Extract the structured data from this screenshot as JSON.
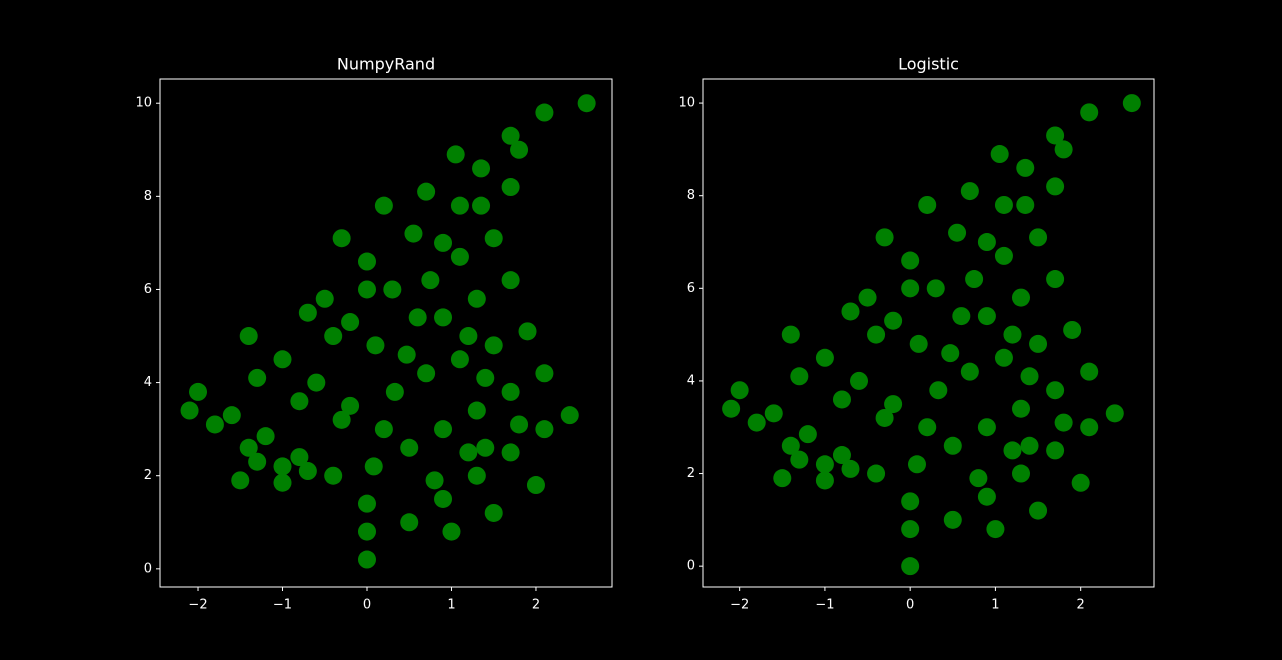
{
  "chart_data": [
    {
      "type": "scatter",
      "title": "NumpyRand",
      "color": "#008000",
      "xlim": [
        -2.45,
        2.9
      ],
      "ylim": [
        -0.39,
        10.52
      ],
      "xticks": [
        {
          "value": -2,
          "label": "−2"
        },
        {
          "value": -1,
          "label": "−1"
        },
        0,
        1,
        2
      ],
      "yticks": [
        0,
        2,
        4,
        6,
        8,
        10
      ],
      "series": [
        {
          "color": "#008000",
          "x": [
            0,
            0,
            0,
            0.08,
            0.2,
            0.33,
            0.47,
            0.6,
            0.75,
            0.9,
            1.1,
            1.35,
            1.7,
            2.1,
            2.6,
            -0.4,
            -0.8,
            -1.2,
            -1.6,
            -2.0,
            -1.4,
            -1.0,
            -1.8,
            -1.3,
            -0.7,
            -1.5,
            -1.0,
            -2.1,
            -0.2,
            -0.6,
            -1.0,
            -1.4,
            -0.8,
            -1.3,
            -0.3,
            0.1,
            -0.2,
            -0.5,
            -0.4,
            -0.7,
            0.3,
            0.0,
            -0.3,
            0.0,
            0.55,
            0.2,
            0.7,
            1.05,
            0.5,
            0.9,
            1.3,
            1.7,
            2.1,
            2.4,
            1.0,
            1.5,
            2.0,
            0.8,
            1.4,
            0.5,
            0.9,
            1.3,
            1.7,
            2.1,
            1.2,
            1.8,
            0.7,
            1.1,
            1.5,
            1.9,
            1.4,
            0.9,
            1.3,
            1.7,
            1.2,
            1.1,
            1.5,
            1.35,
            1.7,
            1.8
          ],
          "values": [
            0.2,
            0.8,
            1.4,
            2.2,
            3,
            3.8,
            4.6,
            5.4,
            6.2,
            7,
            7.8,
            8.6,
            9.3,
            9.8,
            10,
            2.0,
            2.4,
            2.85,
            3.3,
            3.8,
            2.6,
            2.2,
            3.1,
            2.3,
            2.1,
            1.9,
            1.85,
            3.4,
            3.5,
            4.0,
            4.5,
            5.0,
            3.6,
            4.1,
            3.2,
            4.8,
            5.3,
            5.8,
            5.0,
            5.5,
            6.0,
            6.6,
            7.1,
            6.0,
            7.2,
            7.8,
            8.1,
            8.9,
            1.0,
            1.5,
            2.0,
            2.5,
            3.0,
            3.3,
            0.8,
            1.2,
            1.8,
            1.9,
            2.6,
            2.6,
            3.0,
            3.4,
            3.8,
            4.2,
            2.5,
            3.1,
            4.2,
            4.5,
            4.8,
            5.1,
            4.1,
            5.4,
            5.8,
            6.2,
            5.0,
            6.7,
            7.1,
            7.8,
            8.2,
            9.0
          ]
        }
      ]
    },
    {
      "type": "scatter",
      "title": "Logistic",
      "color": "#008000",
      "xlim": [
        -2.43,
        2.86
      ],
      "ylim": [
        -0.45,
        10.52
      ],
      "xticks": [
        {
          "value": -2,
          "label": "−2"
        },
        {
          "value": -1,
          "label": "−1"
        },
        0,
        1,
        2
      ],
      "yticks": [
        0,
        2,
        4,
        6,
        8,
        10
      ],
      "series": [
        {
          "color": "#008000",
          "x": [
            0,
            0,
            0,
            0.08,
            0.2,
            0.33,
            0.47,
            0.6,
            0.75,
            0.9,
            1.1,
            1.35,
            1.7,
            2.1,
            2.6,
            -0.4,
            -0.8,
            -1.2,
            -1.6,
            -2.0,
            -1.4,
            -1.0,
            -1.8,
            -1.3,
            -0.7,
            -1.5,
            -1.0,
            -2.1,
            -0.2,
            -0.6,
            -1.0,
            -1.4,
            -0.8,
            -1.3,
            -0.3,
            0.1,
            -0.2,
            -0.5,
            -0.4,
            -0.7,
            0.3,
            0.0,
            -0.3,
            0.0,
            0.55,
            0.2,
            0.7,
            1.05,
            0.5,
            0.9,
            1.3,
            1.7,
            2.1,
            2.4,
            1.0,
            1.5,
            2.0,
            0.8,
            1.4,
            0.5,
            0.9,
            1.3,
            1.7,
            2.1,
            1.2,
            1.8,
            0.7,
            1.1,
            1.5,
            1.9,
            1.4,
            0.9,
            1.3,
            1.7,
            1.2,
            1.1,
            1.5,
            1.35,
            1.7,
            1.8
          ],
          "values": [
            0.0,
            0.8,
            1.4,
            2.2,
            3,
            3.8,
            4.6,
            5.4,
            6.2,
            7,
            7.8,
            8.6,
            9.3,
            9.8,
            10,
            2.0,
            2.4,
            2.85,
            3.3,
            3.8,
            2.6,
            2.2,
            3.1,
            2.3,
            2.1,
            1.9,
            1.85,
            3.4,
            3.5,
            4.0,
            4.5,
            5.0,
            3.6,
            4.1,
            3.2,
            4.8,
            5.3,
            5.8,
            5.0,
            5.5,
            6.0,
            6.6,
            7.1,
            6.0,
            7.2,
            7.8,
            8.1,
            8.9,
            1.0,
            1.5,
            2.0,
            2.5,
            3.0,
            3.3,
            0.8,
            1.2,
            1.8,
            1.9,
            2.6,
            2.6,
            3.0,
            3.4,
            3.8,
            4.2,
            2.5,
            3.1,
            4.2,
            4.5,
            4.8,
            5.1,
            4.1,
            5.4,
            5.8,
            6.2,
            5.0,
            6.7,
            7.1,
            7.8,
            8.2,
            9.0
          ]
        }
      ]
    }
  ]
}
